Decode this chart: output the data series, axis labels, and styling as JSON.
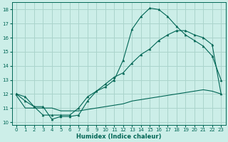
{
  "xlabel": "Humidex (Indice chaleur)",
  "xlim": [
    -0.5,
    23.5
  ],
  "ylim": [
    9.8,
    18.5
  ],
  "yticks": [
    10,
    11,
    12,
    13,
    14,
    15,
    16,
    17,
    18
  ],
  "xticks": [
    0,
    1,
    2,
    3,
    4,
    5,
    6,
    7,
    8,
    9,
    10,
    11,
    12,
    13,
    14,
    15,
    16,
    17,
    18,
    19,
    20,
    21,
    22,
    23
  ],
  "bg_color": "#cceee8",
  "grid_color": "#aad4cc",
  "line_color": "#006655",
  "line1_y": [
    12.0,
    11.8,
    11.1,
    11.1,
    10.2,
    10.4,
    10.4,
    10.5,
    11.5,
    12.2,
    12.5,
    13.0,
    14.4,
    16.6,
    17.5,
    18.1,
    18.0,
    17.5,
    16.8,
    16.2,
    15.8,
    15.4,
    14.7,
    13.0
  ],
  "line2_y": [
    12.0,
    11.5,
    11.1,
    10.5,
    10.5,
    10.5,
    10.5,
    11.0,
    11.8,
    12.2,
    12.7,
    13.2,
    13.5,
    14.2,
    14.8,
    15.2,
    15.8,
    16.2,
    16.5,
    16.5,
    16.2,
    16.0,
    15.5,
    12.0
  ],
  "line3_y": [
    11.9,
    11.0,
    11.0,
    11.0,
    11.0,
    10.8,
    10.8,
    10.8,
    10.9,
    11.0,
    11.1,
    11.2,
    11.3,
    11.5,
    11.6,
    11.7,
    11.8,
    11.9,
    12.0,
    12.1,
    12.2,
    12.3,
    12.2,
    12.0
  ]
}
